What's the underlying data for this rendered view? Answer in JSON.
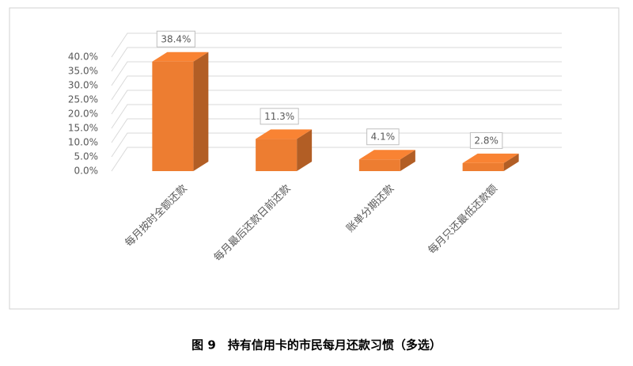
{
  "chart_data": {
    "type": "bar3d",
    "title": "图 9　持有信用卡的市民每月还款习惯（多选）",
    "categories": [
      "每月按时全额还款",
      "每月最后还款日前还款",
      "账单分期还款",
      "每月只还最低还款额"
    ],
    "values": [
      38.4,
      11.3,
      4.1,
      2.8
    ],
    "value_labels": [
      "38.4%",
      "11.3%",
      "4.1%",
      "2.8%"
    ],
    "color": "#ed7d31",
    "ylim": [
      0,
      40
    ],
    "yticks": [
      {
        "value": 0,
        "label": "0.0%"
      },
      {
        "value": 5,
        "label": "5.0%"
      },
      {
        "value": 10,
        "label": "10.0%"
      },
      {
        "value": 15,
        "label": "15.0%"
      },
      {
        "value": 20,
        "label": "20.0%"
      },
      {
        "value": 25,
        "label": "25.0%"
      },
      {
        "value": 30,
        "label": "30.0%"
      },
      {
        "value": 35,
        "label": "35.0%"
      },
      {
        "value": 40,
        "label": "40.0%"
      }
    ],
    "grid": true
  }
}
